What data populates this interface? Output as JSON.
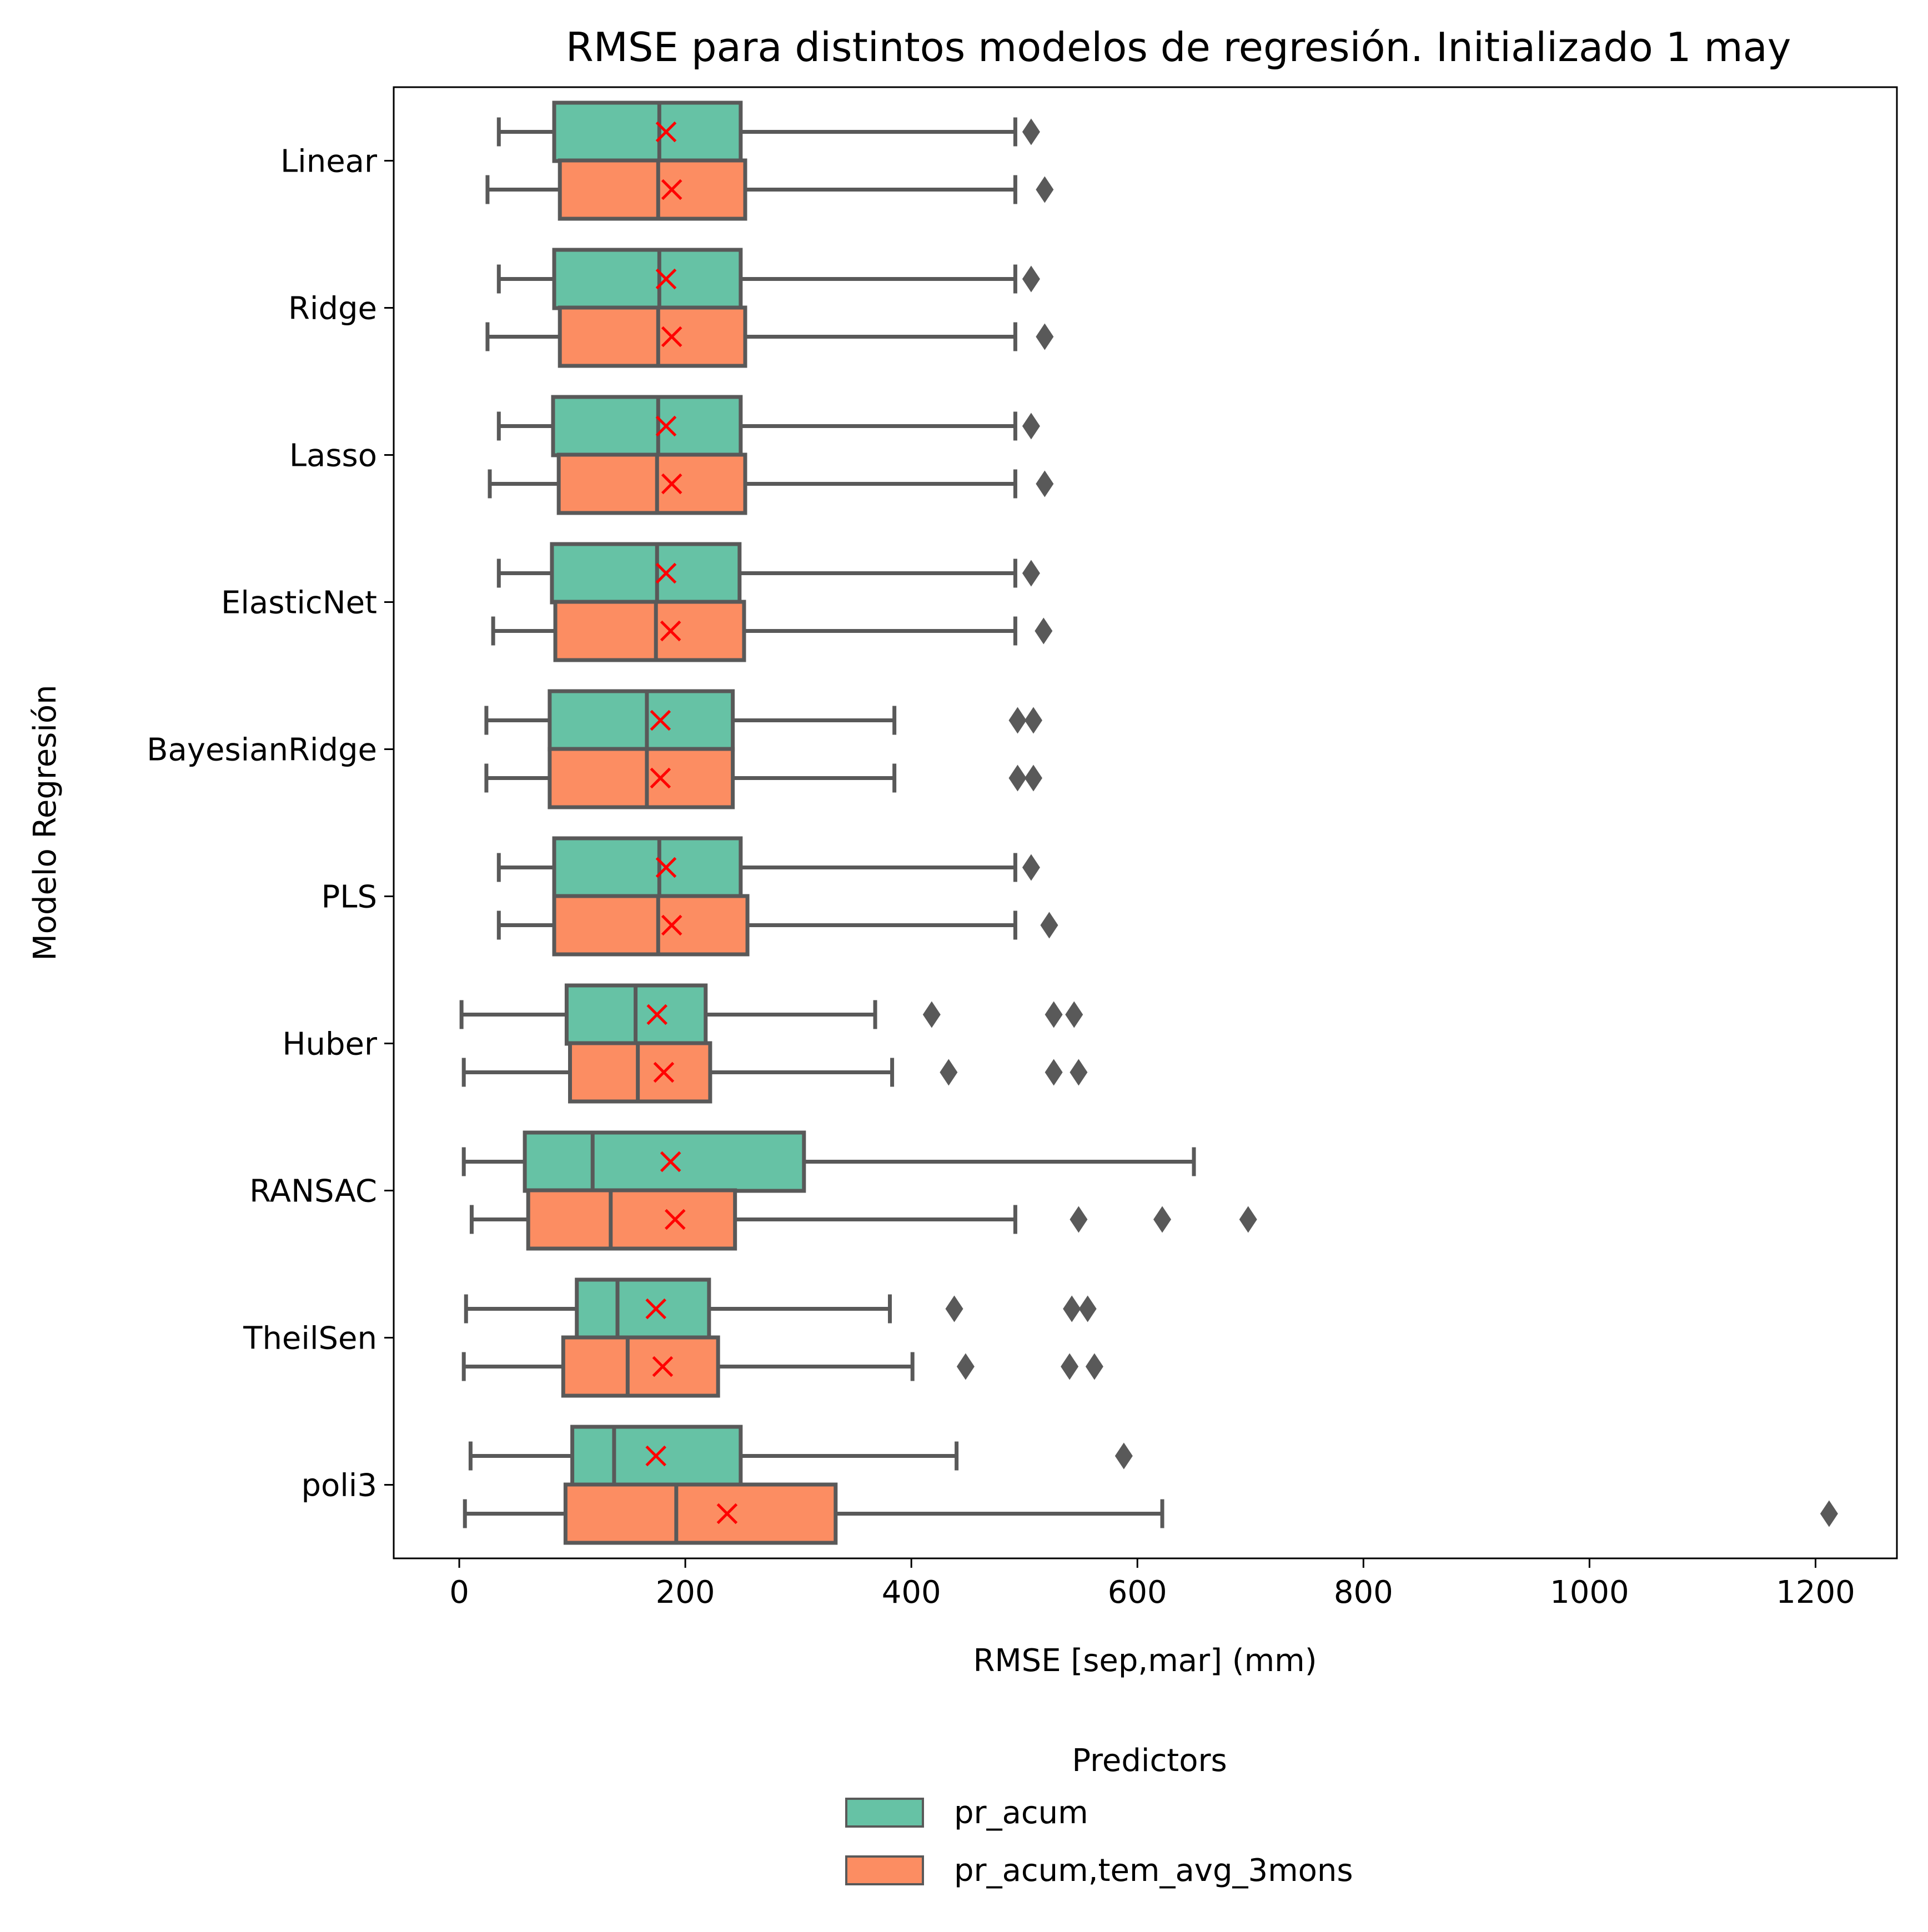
{
  "chart_data": {
    "type": "boxplot",
    "orientation": "horizontal",
    "title": "RMSE para distintos modelos de regresión. Initializado 1 may",
    "xlabel": "RMSE [sep,mar] (mm)",
    "ylabel": "Modelo Regresión",
    "xlim": [
      -58,
      1272
    ],
    "xticks": [
      0,
      200,
      400,
      600,
      800,
      1000,
      1200
    ],
    "xtick_labels": [
      "0",
      "200",
      "400",
      "600",
      "800",
      "1000",
      "1200"
    ],
    "grid": false,
    "legend": {
      "title": "Predictors",
      "position": "bottom-center"
    },
    "categories": [
      "Linear",
      "Ridge",
      "Lasso",
      "ElasticNet",
      "BayesianRidge",
      "PLS",
      "Huber",
      "RANSAC",
      "TheilSen",
      "poli3"
    ],
    "series": [
      {
        "name": "pr_acum",
        "color": "#66c2a5",
        "boxes": [
          {
            "whislo": 35,
            "q1": 84,
            "med": 177,
            "q3": 249,
            "whishi": 492,
            "mean": 183,
            "fliers": [
              506
            ]
          },
          {
            "whislo": 35,
            "q1": 84,
            "med": 177,
            "q3": 249,
            "whishi": 492,
            "mean": 183,
            "fliers": [
              506
            ]
          },
          {
            "whislo": 35,
            "q1": 83,
            "med": 176,
            "q3": 249,
            "whishi": 492,
            "mean": 183,
            "fliers": [
              506
            ]
          },
          {
            "whislo": 35,
            "q1": 82,
            "med": 175,
            "q3": 248,
            "whishi": 492,
            "mean": 183,
            "fliers": [
              506
            ]
          },
          {
            "whislo": 24,
            "q1": 80,
            "med": 166,
            "q3": 242,
            "whishi": 385,
            "mean": 178,
            "fliers": [
              494,
              508
            ]
          },
          {
            "whislo": 35,
            "q1": 84,
            "med": 177,
            "q3": 249,
            "whishi": 492,
            "mean": 183,
            "fliers": [
              506
            ]
          },
          {
            "whislo": 2,
            "q1": 95,
            "med": 156,
            "q3": 218,
            "whishi": 368,
            "mean": 175,
            "fliers": [
              418,
              526,
              544
            ]
          },
          {
            "whislo": 4,
            "q1": 58,
            "med": 118,
            "q3": 305,
            "whishi": 650,
            "mean": 187,
            "fliers": []
          },
          {
            "whislo": 6,
            "q1": 104,
            "med": 140,
            "q3": 221,
            "whishi": 381,
            "mean": 174,
            "fliers": [
              438,
              542,
              556
            ]
          },
          {
            "whislo": 10,
            "q1": 100,
            "med": 137,
            "q3": 249,
            "whishi": 440,
            "mean": 174,
            "fliers": [
              588
            ]
          }
        ]
      },
      {
        "name": "pr_acum,tem_avg_3mons",
        "color": "#fc8d62",
        "boxes": [
          {
            "whislo": 25,
            "q1": 89,
            "med": 176,
            "q3": 253,
            "whishi": 492,
            "mean": 188,
            "fliers": [
              518
            ]
          },
          {
            "whislo": 25,
            "q1": 89,
            "med": 176,
            "q3": 253,
            "whishi": 492,
            "mean": 188,
            "fliers": [
              518
            ]
          },
          {
            "whislo": 27,
            "q1": 88,
            "med": 175,
            "q3": 253,
            "whishi": 492,
            "mean": 188,
            "fliers": [
              518
            ]
          },
          {
            "whislo": 30,
            "q1": 85,
            "med": 174,
            "q3": 252,
            "whishi": 492,
            "mean": 187,
            "fliers": [
              517
            ]
          },
          {
            "whislo": 24,
            "q1": 80,
            "med": 166,
            "q3": 242,
            "whishi": 385,
            "mean": 178,
            "fliers": [
              494,
              508
            ]
          },
          {
            "whislo": 35,
            "q1": 84,
            "med": 176,
            "q3": 255,
            "whishi": 492,
            "mean": 188,
            "fliers": [
              522
            ]
          },
          {
            "whislo": 4,
            "q1": 98,
            "med": 158,
            "q3": 222,
            "whishi": 383,
            "mean": 181,
            "fliers": [
              433,
              526,
              548
            ]
          },
          {
            "whislo": 11,
            "q1": 61,
            "med": 134,
            "q3": 244,
            "whishi": 492,
            "mean": 191,
            "fliers": [
              548,
              622,
              698
            ]
          },
          {
            "whislo": 4,
            "q1": 92,
            "med": 149,
            "q3": 229,
            "whishi": 401,
            "mean": 180,
            "fliers": [
              448,
              540,
              562
            ]
          },
          {
            "whislo": 5,
            "q1": 94,
            "med": 192,
            "q3": 333,
            "whishi": 622,
            "mean": 237,
            "fliers": [
              1212
            ]
          }
        ]
      }
    ]
  }
}
